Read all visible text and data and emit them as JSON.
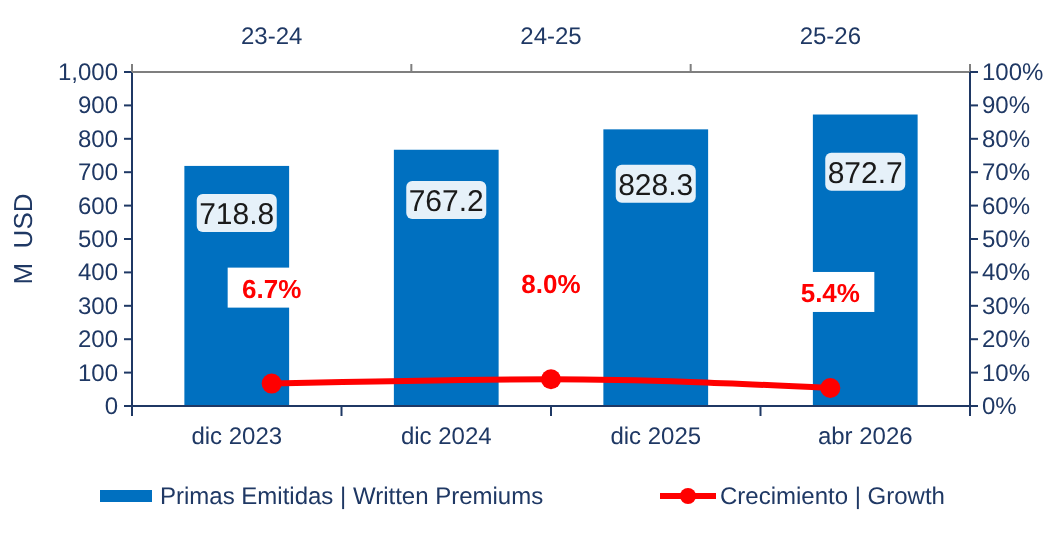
{
  "chart_data": [
    {
      "type": "bar",
      "ylabel": "M  USD",
      "categories": [
        "dic 2023",
        "dic 2024",
        "dic 2025",
        "abr 2026"
      ],
      "series": [
        {
          "name": "Primas Emitidas | Written Premiums",
          "color": "#0070c0",
          "values": [
            718.8,
            767.2,
            828.3,
            872.7
          ]
        }
      ],
      "ylim": [
        0,
        1000
      ],
      "yticks": [
        0,
        100,
        200,
        300,
        400,
        500,
        600,
        700,
        800,
        900,
        {
          "value": 1000,
          "label": "1,000"
        }
      ],
      "data_labels": true,
      "legend": "bottom"
    },
    {
      "type": "line",
      "categories": [
        "23-24",
        "24-25",
        "25-26"
      ],
      "series": [
        {
          "name": "Crecimiento | Growth",
          "axis": "y2",
          "color": "#ff0000",
          "values": [
            6.7,
            8.0,
            5.4
          ],
          "value_labels": [
            "6.7%",
            "8.0%",
            "5.4%"
          ]
        }
      ],
      "y2lim": [
        0,
        100
      ],
      "y2ticks": [
        {
          "value": 0,
          "label": "0%"
        },
        {
          "value": 10,
          "label": "10%"
        },
        {
          "value": 20,
          "label": "20%"
        },
        {
          "value": 30,
          "label": "30%"
        },
        {
          "value": 40,
          "label": "40%"
        },
        {
          "value": 50,
          "label": "50%"
        },
        {
          "value": 60,
          "label": "60%"
        },
        {
          "value": 70,
          "label": "70%"
        },
        {
          "value": 80,
          "label": "80%"
        },
        {
          "value": 90,
          "label": "90%"
        },
        {
          "value": 100,
          "label": "100%"
        }
      ],
      "marker": "circle",
      "legend": "bottom"
    }
  ]
}
